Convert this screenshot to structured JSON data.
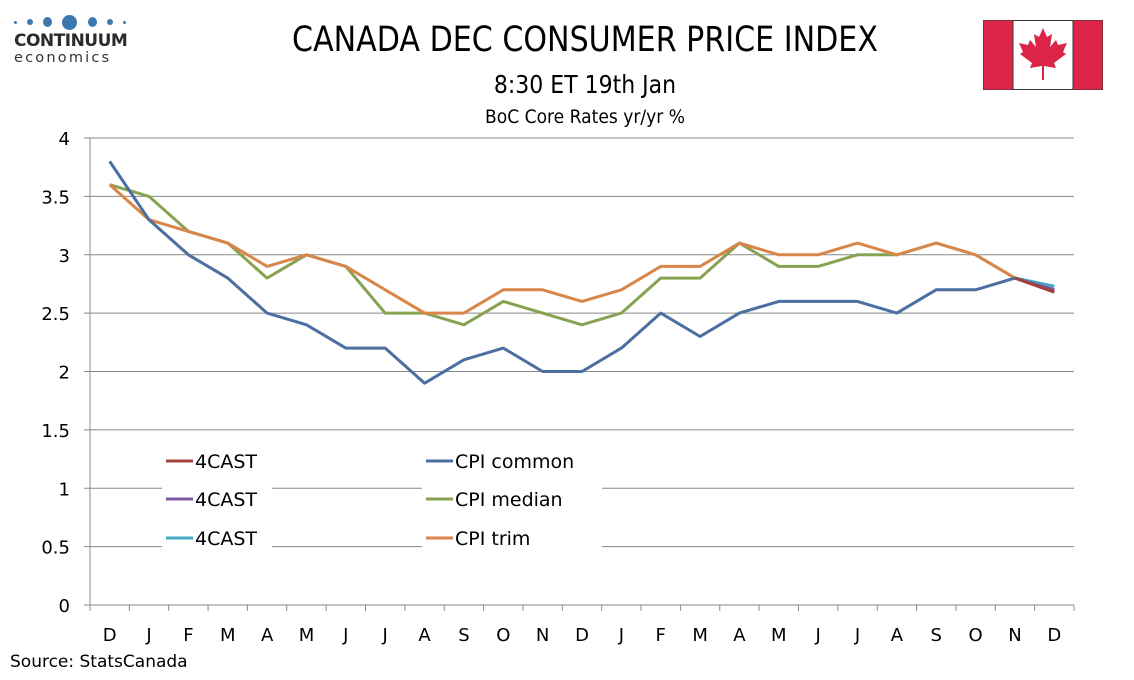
{
  "header": {
    "logo_brand": "CONTINUUM",
    "logo_sub": "economics",
    "title": "CANADA DEC CONSUMER PRICE INDEX",
    "subtitle": "8:30 ET 19th Jan",
    "subsubtitle": "BoC Core Rates yr/yr %",
    "flag": "canada-flag"
  },
  "footer": {
    "source": "Source: StatsCanada"
  },
  "colors": {
    "cpi_common": "#4a6fa0",
    "cpi_median": "#87a352",
    "cpi_trim": "#d8864a",
    "forecast_common": "#a3403d",
    "forecast_median": "#7b5a9e",
    "forecast_trim": "#43a9c0",
    "grid": "#888888",
    "flag_red": "#dc2448",
    "logo_blue": "#3b78b0"
  },
  "chart_data": {
    "type": "line",
    "title": "BoC Core Rates yr/yr %",
    "xlabel": "",
    "ylabel": "",
    "ylim": [
      0,
      4
    ],
    "yticks": [
      "0",
      "0.5",
      "1",
      "1.5",
      "2",
      "2.5",
      "3",
      "3.5",
      "4"
    ],
    "ytick_values": [
      0,
      0.5,
      1,
      1.5,
      2,
      2.5,
      3,
      3.5,
      4
    ],
    "grid": true,
    "legend_position": "lower-left",
    "categories": [
      "D",
      "J",
      "F",
      "M",
      "A",
      "M",
      "J",
      "J",
      "A",
      "S",
      "O",
      "N",
      "D",
      "J",
      "F",
      "M",
      "A",
      "M",
      "J",
      "J",
      "A",
      "S",
      "O",
      "N",
      "D"
    ],
    "series": [
      {
        "name": "CPI common",
        "color_key": "cpi_common",
        "values": [
          3.8,
          3.3,
          3.0,
          2.8,
          2.5,
          2.4,
          2.2,
          2.2,
          1.9,
          2.1,
          2.2,
          2.0,
          2.0,
          2.2,
          2.5,
          2.3,
          2.5,
          2.6,
          2.6,
          2.6,
          2.5,
          2.7,
          2.7,
          2.8,
          null
        ]
      },
      {
        "name": "CPI median",
        "color_key": "cpi_median",
        "values": [
          3.6,
          3.5,
          3.2,
          3.1,
          2.8,
          3.0,
          2.9,
          2.5,
          2.5,
          2.4,
          2.6,
          2.5,
          2.4,
          2.5,
          2.8,
          2.8,
          3.1,
          2.9,
          2.9,
          3.0,
          3.0,
          3.1,
          3.0,
          2.8,
          null
        ]
      },
      {
        "name": "CPI trim",
        "color_key": "cpi_trim",
        "values": [
          3.6,
          3.3,
          3.2,
          3.1,
          2.9,
          3.0,
          2.9,
          2.7,
          2.5,
          2.5,
          2.7,
          2.7,
          2.6,
          2.7,
          2.9,
          2.9,
          3.1,
          3.0,
          3.0,
          3.1,
          3.0,
          3.1,
          3.0,
          2.8,
          null
        ]
      },
      {
        "name": "4CAST",
        "color_key": "forecast_common",
        "values": [
          null,
          null,
          null,
          null,
          null,
          null,
          null,
          null,
          null,
          null,
          null,
          null,
          null,
          null,
          null,
          null,
          null,
          null,
          null,
          null,
          null,
          null,
          null,
          2.8,
          2.68
        ]
      },
      {
        "name": "4CAST",
        "color_key": "forecast_median",
        "values": [
          null,
          null,
          null,
          null,
          null,
          null,
          null,
          null,
          null,
          null,
          null,
          null,
          null,
          null,
          null,
          null,
          null,
          null,
          null,
          null,
          null,
          null,
          null,
          2.8,
          2.7
        ]
      },
      {
        "name": "4CAST",
        "color_key": "forecast_trim",
        "values": [
          null,
          null,
          null,
          null,
          null,
          null,
          null,
          null,
          null,
          null,
          null,
          null,
          null,
          null,
          null,
          null,
          null,
          null,
          null,
          null,
          null,
          null,
          null,
          2.8,
          2.73
        ]
      }
    ],
    "legend": [
      {
        "label": "4CAST",
        "color_key": "forecast_common"
      },
      {
        "label": "CPI common",
        "color_key": "cpi_common"
      },
      {
        "label": "4CAST",
        "color_key": "forecast_median"
      },
      {
        "label": "CPI median",
        "color_key": "cpi_median"
      },
      {
        "label": "4CAST",
        "color_key": "forecast_trim"
      },
      {
        "label": "CPI trim",
        "color_key": "cpi_trim"
      }
    ]
  }
}
